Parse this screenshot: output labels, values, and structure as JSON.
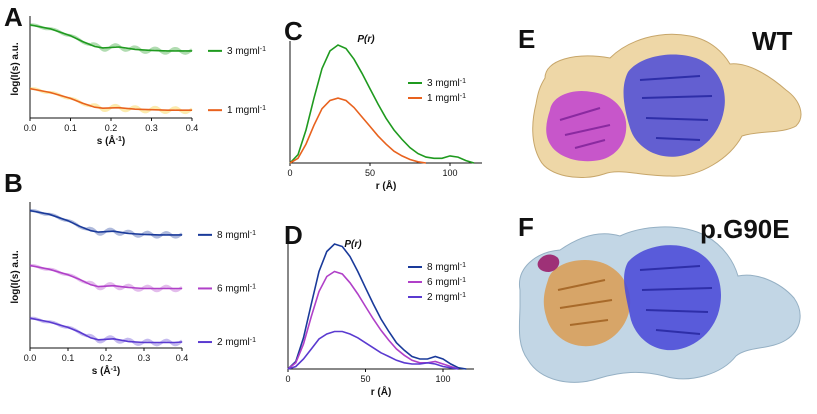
{
  "panels": {
    "A": "A",
    "B": "B",
    "C": "C",
    "D": "D",
    "E": "E",
    "F": "F"
  },
  "colors": {
    "green": "#1f9a1f",
    "orange": "#e8621e",
    "yellow_noise": "#f5c518",
    "navy": "#1a3a9a",
    "magenta": "#b040c8",
    "purple": "#5a3ad0",
    "wt_envelope": "#e8c98a",
    "g90e_envelope": "#b7cfe0",
    "domain_magenta": "#c03fd0",
    "domain_blue": "#4a4ad8",
    "domain_tan": "#d9a05a"
  },
  "structures": {
    "E": {
      "label": "WT",
      "icon": "protein-structure-wt"
    },
    "F": {
      "label": "p.G90E",
      "icon": "protein-structure-g90e"
    }
  },
  "chart_data": [
    {
      "panel": "A",
      "type": "line",
      "xlabel": "s (Å-1)",
      "ylabel": "log(I(s) a.u.",
      "xlim": [
        0,
        0.4
      ],
      "xticks": [
        "0.0",
        "0.1",
        "0.2",
        "0.3",
        "0.4"
      ],
      "series": [
        {
          "name": "3 mgml-1",
          "color": "#1f9a1f",
          "x": [
            0,
            0.05,
            0.1,
            0.13,
            0.16,
            0.18,
            0.22,
            0.26,
            0.3,
            0.34,
            0.38,
            0.4
          ],
          "y": [
            0.0,
            -0.08,
            -0.22,
            -0.34,
            -0.44,
            -0.47,
            -0.45,
            -0.5,
            -0.52,
            -0.53,
            -0.53,
            -0.53
          ]
        },
        {
          "name": "1 mgml-1",
          "color": "#e8621e",
          "x": [
            0,
            0.05,
            0.1,
            0.13,
            0.16,
            0.18,
            0.22,
            0.26,
            0.3,
            0.34,
            0.38,
            0.4
          ],
          "y": [
            -1.3,
            -1.38,
            -1.5,
            -1.6,
            -1.68,
            -1.7,
            -1.69,
            -1.72,
            -1.73,
            -1.74,
            -1.74,
            -1.74
          ]
        }
      ]
    },
    {
      "panel": "B",
      "type": "line",
      "xlabel": "s (Å-1)",
      "ylabel": "log(I(s) a.u.",
      "xlim": [
        0,
        0.4
      ],
      "xticks": [
        "0.0",
        "0.1",
        "0.2",
        "0.3",
        "0.4"
      ],
      "series": [
        {
          "name": "8 mgml-1",
          "color": "#1a3a9a",
          "x": [
            0,
            0.05,
            0.1,
            0.13,
            0.16,
            0.18,
            0.22,
            0.26,
            0.3,
            0.34,
            0.38,
            0.4
          ],
          "y": [
            0.0,
            -0.08,
            -0.22,
            -0.34,
            -0.44,
            -0.47,
            -0.45,
            -0.5,
            -0.52,
            -0.53,
            -0.53,
            -0.53
          ]
        },
        {
          "name": "6 mgml-1",
          "color": "#b040c8",
          "x": [
            0,
            0.05,
            0.1,
            0.13,
            0.16,
            0.18,
            0.22,
            0.26,
            0.3,
            0.34,
            0.38,
            0.4
          ],
          "y": [
            -1.2,
            -1.28,
            -1.4,
            -1.5,
            -1.62,
            -1.66,
            -1.64,
            -1.68,
            -1.7,
            -1.7,
            -1.7,
            -1.7
          ]
        },
        {
          "name": "2 mgml-1",
          "color": "#5a3ad0",
          "x": [
            0,
            0.05,
            0.1,
            0.13,
            0.16,
            0.18,
            0.22,
            0.26,
            0.3,
            0.34,
            0.38,
            0.4
          ],
          "y": [
            -2.35,
            -2.43,
            -2.55,
            -2.65,
            -2.78,
            -2.82,
            -2.8,
            -2.86,
            -2.88,
            -2.88,
            -2.88,
            -2.87
          ]
        }
      ]
    },
    {
      "panel": "C",
      "type": "line",
      "title": "P(r)",
      "xlabel": "r (Å)",
      "xlim": [
        0,
        120
      ],
      "xticks": [
        "0",
        "50",
        "100"
      ],
      "series": [
        {
          "name": "3 mgml-1",
          "color": "#1f9a1f",
          "x": [
            0,
            5,
            10,
            15,
            20,
            25,
            30,
            35,
            40,
            45,
            50,
            55,
            60,
            65,
            70,
            75,
            80,
            85,
            90,
            95,
            100,
            105,
            110,
            115
          ],
          "y": [
            0,
            0.07,
            0.28,
            0.55,
            0.8,
            0.95,
            1.0,
            0.97,
            0.88,
            0.76,
            0.63,
            0.5,
            0.38,
            0.28,
            0.2,
            0.13,
            0.08,
            0.05,
            0.04,
            0.04,
            0.06,
            0.05,
            0.02,
            0
          ]
        },
        {
          "name": "1 mgml-1",
          "color": "#e8621e",
          "x": [
            0,
            5,
            10,
            15,
            20,
            25,
            30,
            35,
            40,
            45,
            50,
            55,
            60,
            65,
            70,
            75,
            80,
            85
          ],
          "y": [
            0,
            0.04,
            0.16,
            0.32,
            0.46,
            0.53,
            0.55,
            0.53,
            0.47,
            0.39,
            0.31,
            0.23,
            0.16,
            0.1,
            0.06,
            0.03,
            0.01,
            0
          ]
        }
      ]
    },
    {
      "panel": "D",
      "type": "line",
      "title": "P(r)",
      "xlabel": "r (Å)",
      "xlim": [
        0,
        120
      ],
      "xticks": [
        "0",
        "50",
        "100"
      ],
      "series": [
        {
          "name": "8 mgml-1",
          "color": "#1a3a9a",
          "x": [
            0,
            5,
            10,
            15,
            20,
            25,
            30,
            35,
            40,
            45,
            50,
            55,
            60,
            65,
            70,
            75,
            80,
            85,
            90,
            95,
            100,
            105,
            110,
            115
          ],
          "y": [
            0,
            0.06,
            0.25,
            0.52,
            0.78,
            0.94,
            1.0,
            0.98,
            0.9,
            0.78,
            0.65,
            0.52,
            0.4,
            0.3,
            0.21,
            0.15,
            0.1,
            0.08,
            0.08,
            0.1,
            0.08,
            0.04,
            0.01,
            0
          ]
        },
        {
          "name": "6 mgml-1",
          "color": "#b040c8",
          "x": [
            0,
            5,
            10,
            15,
            20,
            25,
            30,
            35,
            40,
            45,
            50,
            55,
            60,
            65,
            70,
            75,
            80,
            85,
            90,
            95,
            100,
            105,
            110
          ],
          "y": [
            0,
            0.05,
            0.2,
            0.42,
            0.62,
            0.74,
            0.78,
            0.76,
            0.69,
            0.6,
            0.5,
            0.4,
            0.31,
            0.23,
            0.16,
            0.11,
            0.07,
            0.05,
            0.05,
            0.06,
            0.04,
            0.02,
            0
          ]
        },
        {
          "name": "2 mgml-1",
          "color": "#5a3ad0",
          "x": [
            0,
            5,
            10,
            15,
            20,
            25,
            30,
            35,
            40,
            45,
            50,
            55,
            60,
            65,
            70,
            75,
            80,
            85,
            90,
            95,
            100,
            105,
            110
          ],
          "y": [
            0,
            0.02,
            0.08,
            0.16,
            0.24,
            0.28,
            0.3,
            0.3,
            0.28,
            0.25,
            0.21,
            0.17,
            0.13,
            0.1,
            0.07,
            0.05,
            0.04,
            0.04,
            0.05,
            0.04,
            0.02,
            0.01,
            0
          ]
        }
      ]
    }
  ]
}
